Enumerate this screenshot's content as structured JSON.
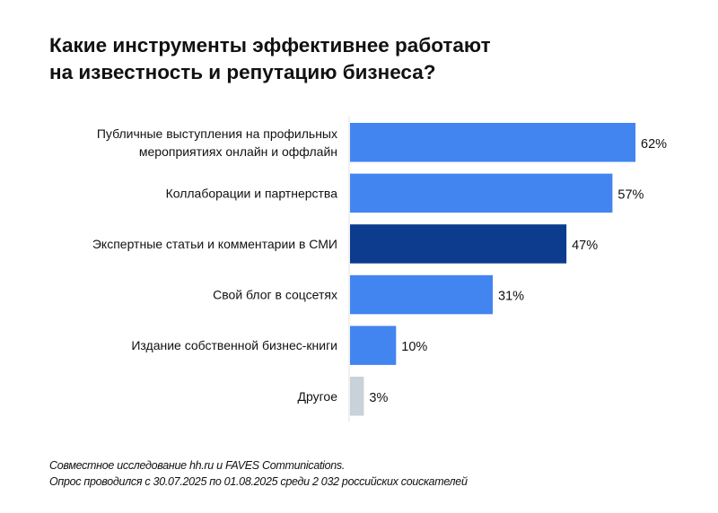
{
  "title_lines": [
    "Какие инструменты эффективнее работают",
    "на известность и репутацию бизнеса?"
  ],
  "chart_data": {
    "type": "bar",
    "orientation": "horizontal",
    "title": "Какие инструменты эффективнее работают на известность и репутацию бизнеса?",
    "categories": [
      [
        "Публичные выступления на профильных",
        "мероприятиях онлайн и оффлайн"
      ],
      [
        "Коллаборации и партнерства"
      ],
      [
        "Экспертные статьи и комментарии в СМИ"
      ],
      [
        "Свой блог в соцсетях"
      ],
      [
        "Издание собственной бизнес-книги"
      ],
      [
        "Другое"
      ]
    ],
    "values": [
      62,
      57,
      47,
      31,
      10,
      3
    ],
    "value_labels": [
      "62%",
      "57%",
      "47%",
      "31%",
      "10%",
      "3%"
    ],
    "bar_colors": [
      "#4285f0",
      "#4285f0",
      "#0d3b8e",
      "#4285f0",
      "#4285f0",
      "#c9d1d9"
    ],
    "xlim": [
      0,
      100
    ],
    "grid": false,
    "legend": "none"
  },
  "footnote": [
    "Совместное исследование hh.ru и FAVES Communications.",
    "Опрос проводился с 30.07.2025 по 01.08.2025 среди 2 032 российских соискателей"
  ]
}
